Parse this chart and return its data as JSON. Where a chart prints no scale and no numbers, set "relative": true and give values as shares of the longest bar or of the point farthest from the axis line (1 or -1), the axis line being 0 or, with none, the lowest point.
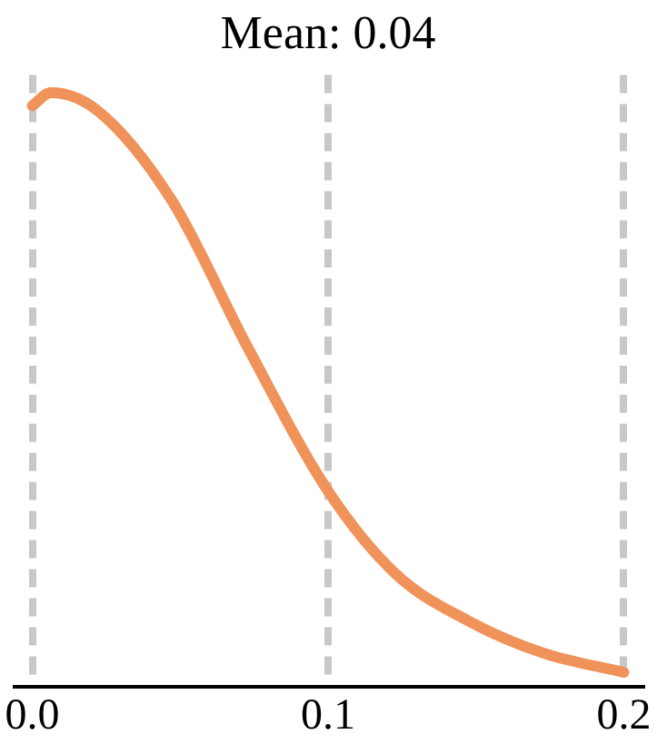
{
  "chart_data": {
    "type": "line",
    "title": "Mean: 0.04",
    "relative": true,
    "x": [
      0,
      0.0063,
      0.022,
      0.047,
      0.073,
      0.1,
      0.123,
      0.148,
      0.173,
      0.2
    ],
    "series": [
      {
        "color": "#f0935a",
        "values": [
          0.978,
          1,
          0.97,
          0.82,
          0.57,
          0.33,
          0.19,
          0.11,
          0.057,
          0.025
        ]
      }
    ],
    "xlim": [
      -0.006,
      0.206
    ],
    "xticks": [
      {
        "value": 0,
        "label": "0.0"
      },
      {
        "value": 0.1,
        "label": "0.1"
      },
      {
        "value": 0.2,
        "label": "0.2"
      }
    ],
    "grid": "x",
    "legend": false,
    "marker": "none",
    "line_style": "solid"
  }
}
